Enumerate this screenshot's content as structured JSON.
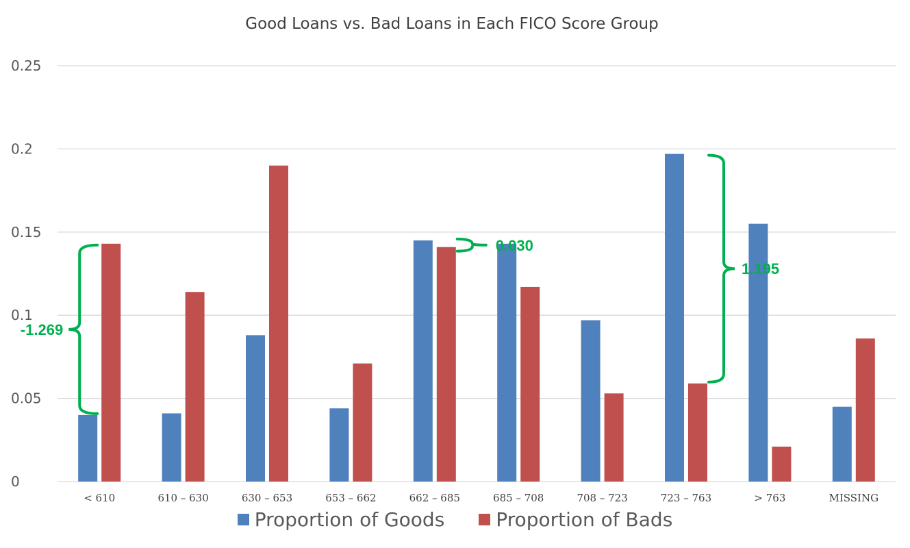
{
  "chart_data": {
    "type": "bar",
    "title": "Good Loans vs. Bad Loans in Each FICO Score Group",
    "categories": [
      "< 610",
      "610 – 630",
      "630 – 653",
      "653 – 662",
      "662 – 685",
      "685 – 708",
      "708 – 723",
      "723 – 763",
      "> 763",
      "MISSING"
    ],
    "series": [
      {
        "name": "Proportion of Goods",
        "color": "#4f81bd",
        "values": [
          0.04,
          0.041,
          0.088,
          0.044,
          0.145,
          0.143,
          0.097,
          0.197,
          0.155,
          0.045
        ]
      },
      {
        "name": "Proportion of Bads",
        "color": "#c0504d",
        "values": [
          0.143,
          0.114,
          0.19,
          0.071,
          0.141,
          0.117,
          0.053,
          0.059,
          0.021,
          0.086
        ]
      }
    ],
    "ylim": [
      0,
      0.25
    ],
    "yticks": [
      0,
      0.05,
      0.1,
      0.15,
      0.2,
      0.25
    ],
    "ytick_labels": [
      "0",
      "0.05",
      "0.1",
      "0.15",
      "0.2",
      "0.25"
    ],
    "grid": true,
    "legend_position": "bottom",
    "annotations": [
      {
        "text": "-1.269",
        "category": "< 610",
        "y_from": 0.04,
        "y_to": 0.143,
        "color": "#00b050"
      },
      {
        "text": "0.030",
        "category": "662 – 685",
        "y_from": 0.141,
        "y_to": 0.145,
        "color": "#00b050"
      },
      {
        "text": "1.195",
        "category": "723 – 763",
        "y_from": 0.059,
        "y_to": 0.197,
        "color": "#00b050"
      }
    ]
  }
}
